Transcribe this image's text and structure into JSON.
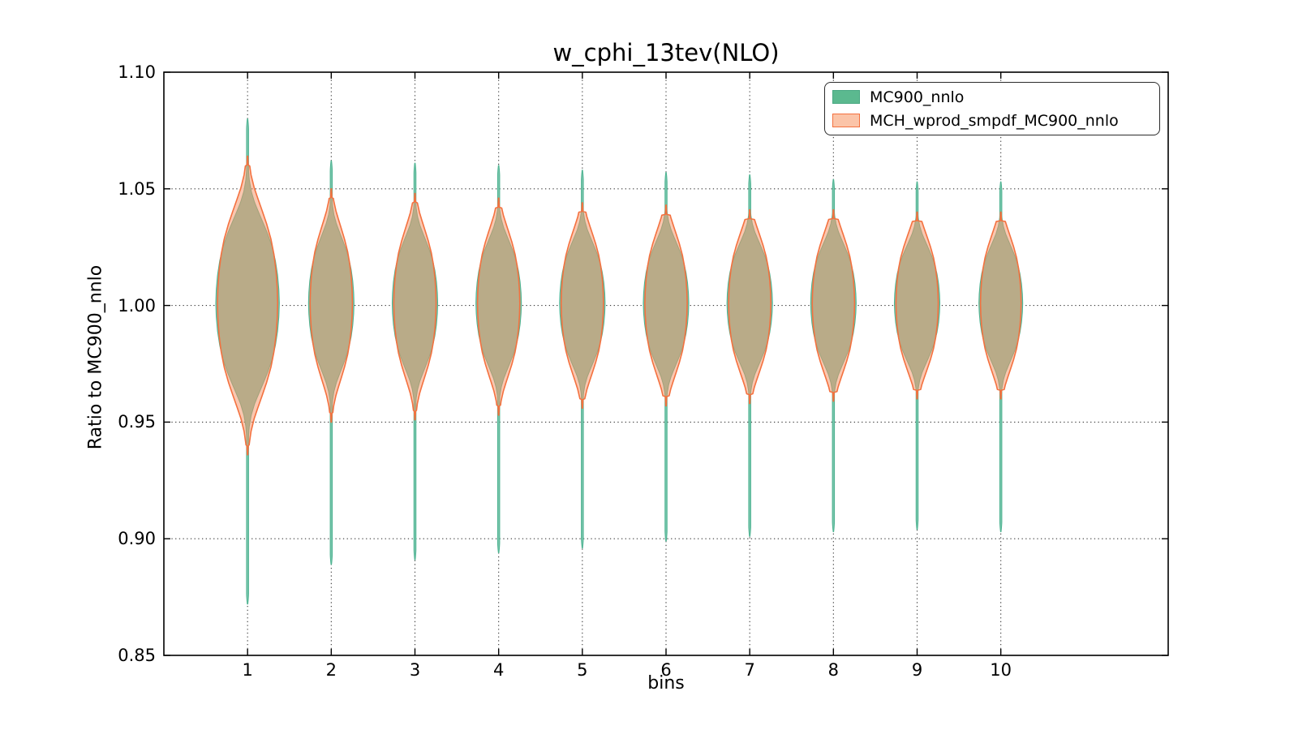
{
  "title": "w_cphi_13tev(NLO)",
  "axes": {
    "xlabel": "bins",
    "ylabel": "Ratio to MC900_nnlo",
    "x_ticks": [
      "1",
      "2",
      "3",
      "4",
      "5",
      "6",
      "7",
      "8",
      "9",
      "10"
    ],
    "y_ticks": [
      "0.85",
      "0.90",
      "0.95",
      "1.00",
      "1.05",
      "1.10"
    ]
  },
  "legend": {
    "items": [
      {
        "label": "MC900_nnlo"
      },
      {
        "label": "MCH_wprod_smpdf_MC900_nnlo"
      }
    ]
  },
  "colors": {
    "series1_fill": "#7ac6ad",
    "series1_edge": "#4db391",
    "series2_fill": "rgba(246,146,101,0.51)",
    "series2_edge": "#f4713f",
    "legend1_fill": "#5bb98f",
    "legend1_edge": "#4aa983",
    "legend2_fill": "#fbc4a8",
    "legend2_edge": "#f4713f",
    "grid": "#3a3a3a",
    "frame": "#000000"
  },
  "chart_data": {
    "type": "violin",
    "title": "w_cphi_13tev(NLO)",
    "xlabel": "bins",
    "ylabel": "Ratio to MC900_nnlo",
    "ylim": [
      0.85,
      1.1
    ],
    "xlim": [
      0,
      12
    ],
    "grid": "dotted",
    "legend_position": "upper right",
    "bins": [
      1,
      2,
      3,
      4,
      5,
      6,
      7,
      8,
      9,
      10
    ],
    "y_gridlines": [
      0.9,
      0.95,
      1.0,
      1.05
    ],
    "series": [
      {
        "name": "MC900_nnlo",
        "violins": [
          {
            "bin": 1,
            "min": 0.872,
            "max": 1.08,
            "center": 1.001,
            "bulge": 0.048,
            "halfwidth": 0.38
          },
          {
            "bin": 2,
            "min": 0.889,
            "max": 1.062,
            "center": 1.001,
            "bulge": 0.038,
            "halfwidth": 0.272
          },
          {
            "bin": 3,
            "min": 0.891,
            "max": 1.061,
            "center": 1.001,
            "bulge": 0.037,
            "halfwidth": 0.272
          },
          {
            "bin": 4,
            "min": 0.894,
            "max": 1.06,
            "center": 1.001,
            "bulge": 0.036,
            "halfwidth": 0.272
          },
          {
            "bin": 5,
            "min": 0.896,
            "max": 1.058,
            "center": 1.001,
            "bulge": 0.035,
            "halfwidth": 0.272
          },
          {
            "bin": 6,
            "min": 0.899,
            "max": 1.057,
            "center": 1.001,
            "bulge": 0.035,
            "halfwidth": 0.272
          },
          {
            "bin": 7,
            "min": 0.901,
            "max": 1.056,
            "center": 1.001,
            "bulge": 0.034,
            "halfwidth": 0.272
          },
          {
            "bin": 8,
            "min": 0.903,
            "max": 1.054,
            "center": 1.001,
            "bulge": 0.034,
            "halfwidth": 0.272
          },
          {
            "bin": 9,
            "min": 0.904,
            "max": 1.053,
            "center": 1.001,
            "bulge": 0.033,
            "halfwidth": 0.272
          },
          {
            "bin": 10,
            "min": 0.903,
            "max": 1.053,
            "center": 1.001,
            "bulge": 0.033,
            "halfwidth": 0.262
          }
        ]
      },
      {
        "name": "MCH_wprod_smpdf_MC900_nnlo",
        "violins": [
          {
            "bin": 1,
            "min": 0.936,
            "max": 1.064,
            "center": 1.001,
            "bulge": 0.055,
            "halfwidth": 0.36
          },
          {
            "bin": 2,
            "min": 0.95,
            "max": 1.05,
            "center": 1.001,
            "bulge": 0.044,
            "halfwidth": 0.253
          },
          {
            "bin": 3,
            "min": 0.951,
            "max": 1.048,
            "center": 1.001,
            "bulge": 0.043,
            "halfwidth": 0.253
          },
          {
            "bin": 4,
            "min": 0.953,
            "max": 1.046,
            "center": 1.001,
            "bulge": 0.042,
            "halfwidth": 0.253
          },
          {
            "bin": 5,
            "min": 0.956,
            "max": 1.044,
            "center": 1.001,
            "bulge": 0.041,
            "halfwidth": 0.253
          },
          {
            "bin": 6,
            "min": 0.957,
            "max": 1.043,
            "center": 1.001,
            "bulge": 0.041,
            "halfwidth": 0.253
          },
          {
            "bin": 7,
            "min": 0.958,
            "max": 1.041,
            "center": 1.001,
            "bulge": 0.04,
            "halfwidth": 0.253
          },
          {
            "bin": 8,
            "min": 0.959,
            "max": 1.041,
            "center": 1.001,
            "bulge": 0.04,
            "halfwidth": 0.253
          },
          {
            "bin": 9,
            "min": 0.96,
            "max": 1.04,
            "center": 1.001,
            "bulge": 0.039,
            "halfwidth": 0.253
          },
          {
            "bin": 10,
            "min": 0.96,
            "max": 1.04,
            "center": 1.001,
            "bulge": 0.039,
            "halfwidth": 0.243
          }
        ]
      }
    ]
  }
}
